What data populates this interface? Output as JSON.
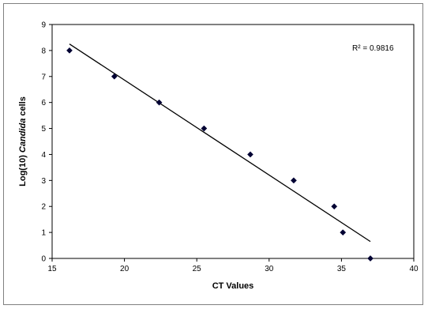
{
  "chart_data": {
    "type": "scatter",
    "title": "",
    "xlabel": "CT Values",
    "ylabel_prefix": "Log(10) ",
    "ylabel_italic": "Candida",
    "ylabel_suffix": " cells",
    "xlim": [
      15,
      40
    ],
    "ylim": [
      0,
      9
    ],
    "x_ticks": [
      15,
      20,
      25,
      30,
      35,
      40
    ],
    "y_ticks": [
      0,
      1,
      2,
      3,
      4,
      5,
      6,
      7,
      8,
      9
    ],
    "grid": false,
    "legend": "none",
    "series": [
      {
        "points": [
          {
            "x": 16.2,
            "y": 8
          },
          {
            "x": 19.3,
            "y": 7
          },
          {
            "x": 22.4,
            "y": 6
          },
          {
            "x": 25.5,
            "y": 5
          },
          {
            "x": 28.7,
            "y": 4
          },
          {
            "x": 31.7,
            "y": 3
          },
          {
            "x": 34.5,
            "y": 2
          },
          {
            "x": 35.1,
            "y": 1
          },
          {
            "x": 37.0,
            "y": 0
          }
        ],
        "marker": "diamond",
        "color": "#000033"
      }
    ],
    "trendline": {
      "type": "linear",
      "x_range": [
        16.2,
        37.0
      ],
      "y_values": [
        8.25,
        0.65
      ],
      "color": "#000000"
    },
    "annotation": "R² = 0.9816"
  }
}
